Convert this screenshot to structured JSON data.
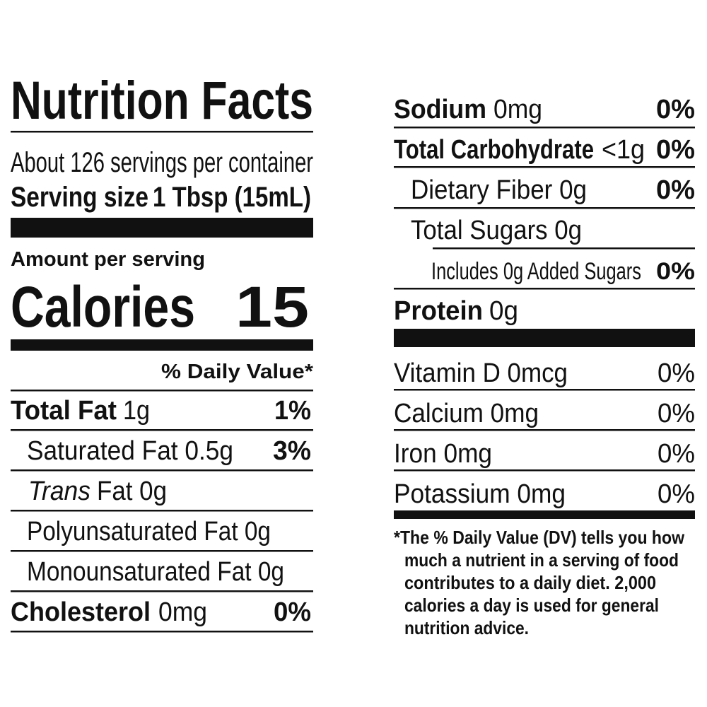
{
  "title": "Nutrition Facts",
  "servings": "About 126 servings per container",
  "serving_size": {
    "label": "Serving size",
    "value": "1 Tbsp (15mL)"
  },
  "amount_per_serving": "Amount per serving",
  "calories": {
    "label": "Calories",
    "value": "15"
  },
  "daily_value_header": "% Daily Value*",
  "nutrients": [
    {
      "name": "Total Fat",
      "amount": "1g",
      "dv": "1%"
    },
    {
      "label": "Saturated Fat 0.5g",
      "dv": "3%"
    },
    {
      "name_italic": "Trans",
      "label": "Fat 0g"
    },
    {
      "label": "Polyunsaturated Fat 0g"
    },
    {
      "label": "Monounsaturated Fat 0g"
    },
    {
      "name": "Cholesterol",
      "amount": "0mg",
      "dv": "0%"
    },
    {
      "name": "Sodium",
      "amount": "0mg",
      "dv": "0%"
    },
    {
      "name": "Total Carbohydrate",
      "amount": "<1g",
      "dv": "0%"
    },
    {
      "label": "Dietary Fiber 0g",
      "dv": "0%"
    },
    {
      "label": "Total Sugars 0g"
    },
    {
      "label": "Includes 0g Added Sugars",
      "dv": "0%"
    },
    {
      "name": "Protein",
      "amount": "0g"
    }
  ],
  "vitamins": [
    {
      "label": "Vitamin D 0mcg",
      "dv": "0%"
    },
    {
      "label": "Calcium 0mg",
      "dv": "0%"
    },
    {
      "label": "Iron 0mg",
      "dv": "0%"
    },
    {
      "label": "Potassium 0mg",
      "dv": "0%"
    }
  ],
  "footnote": [
    "*The % Daily Value (DV) tells you how",
    "much a nutrient in a serving of food",
    "contributes to a daily diet. 2,000",
    "calories a day is used for general",
    "nutrition advice."
  ]
}
